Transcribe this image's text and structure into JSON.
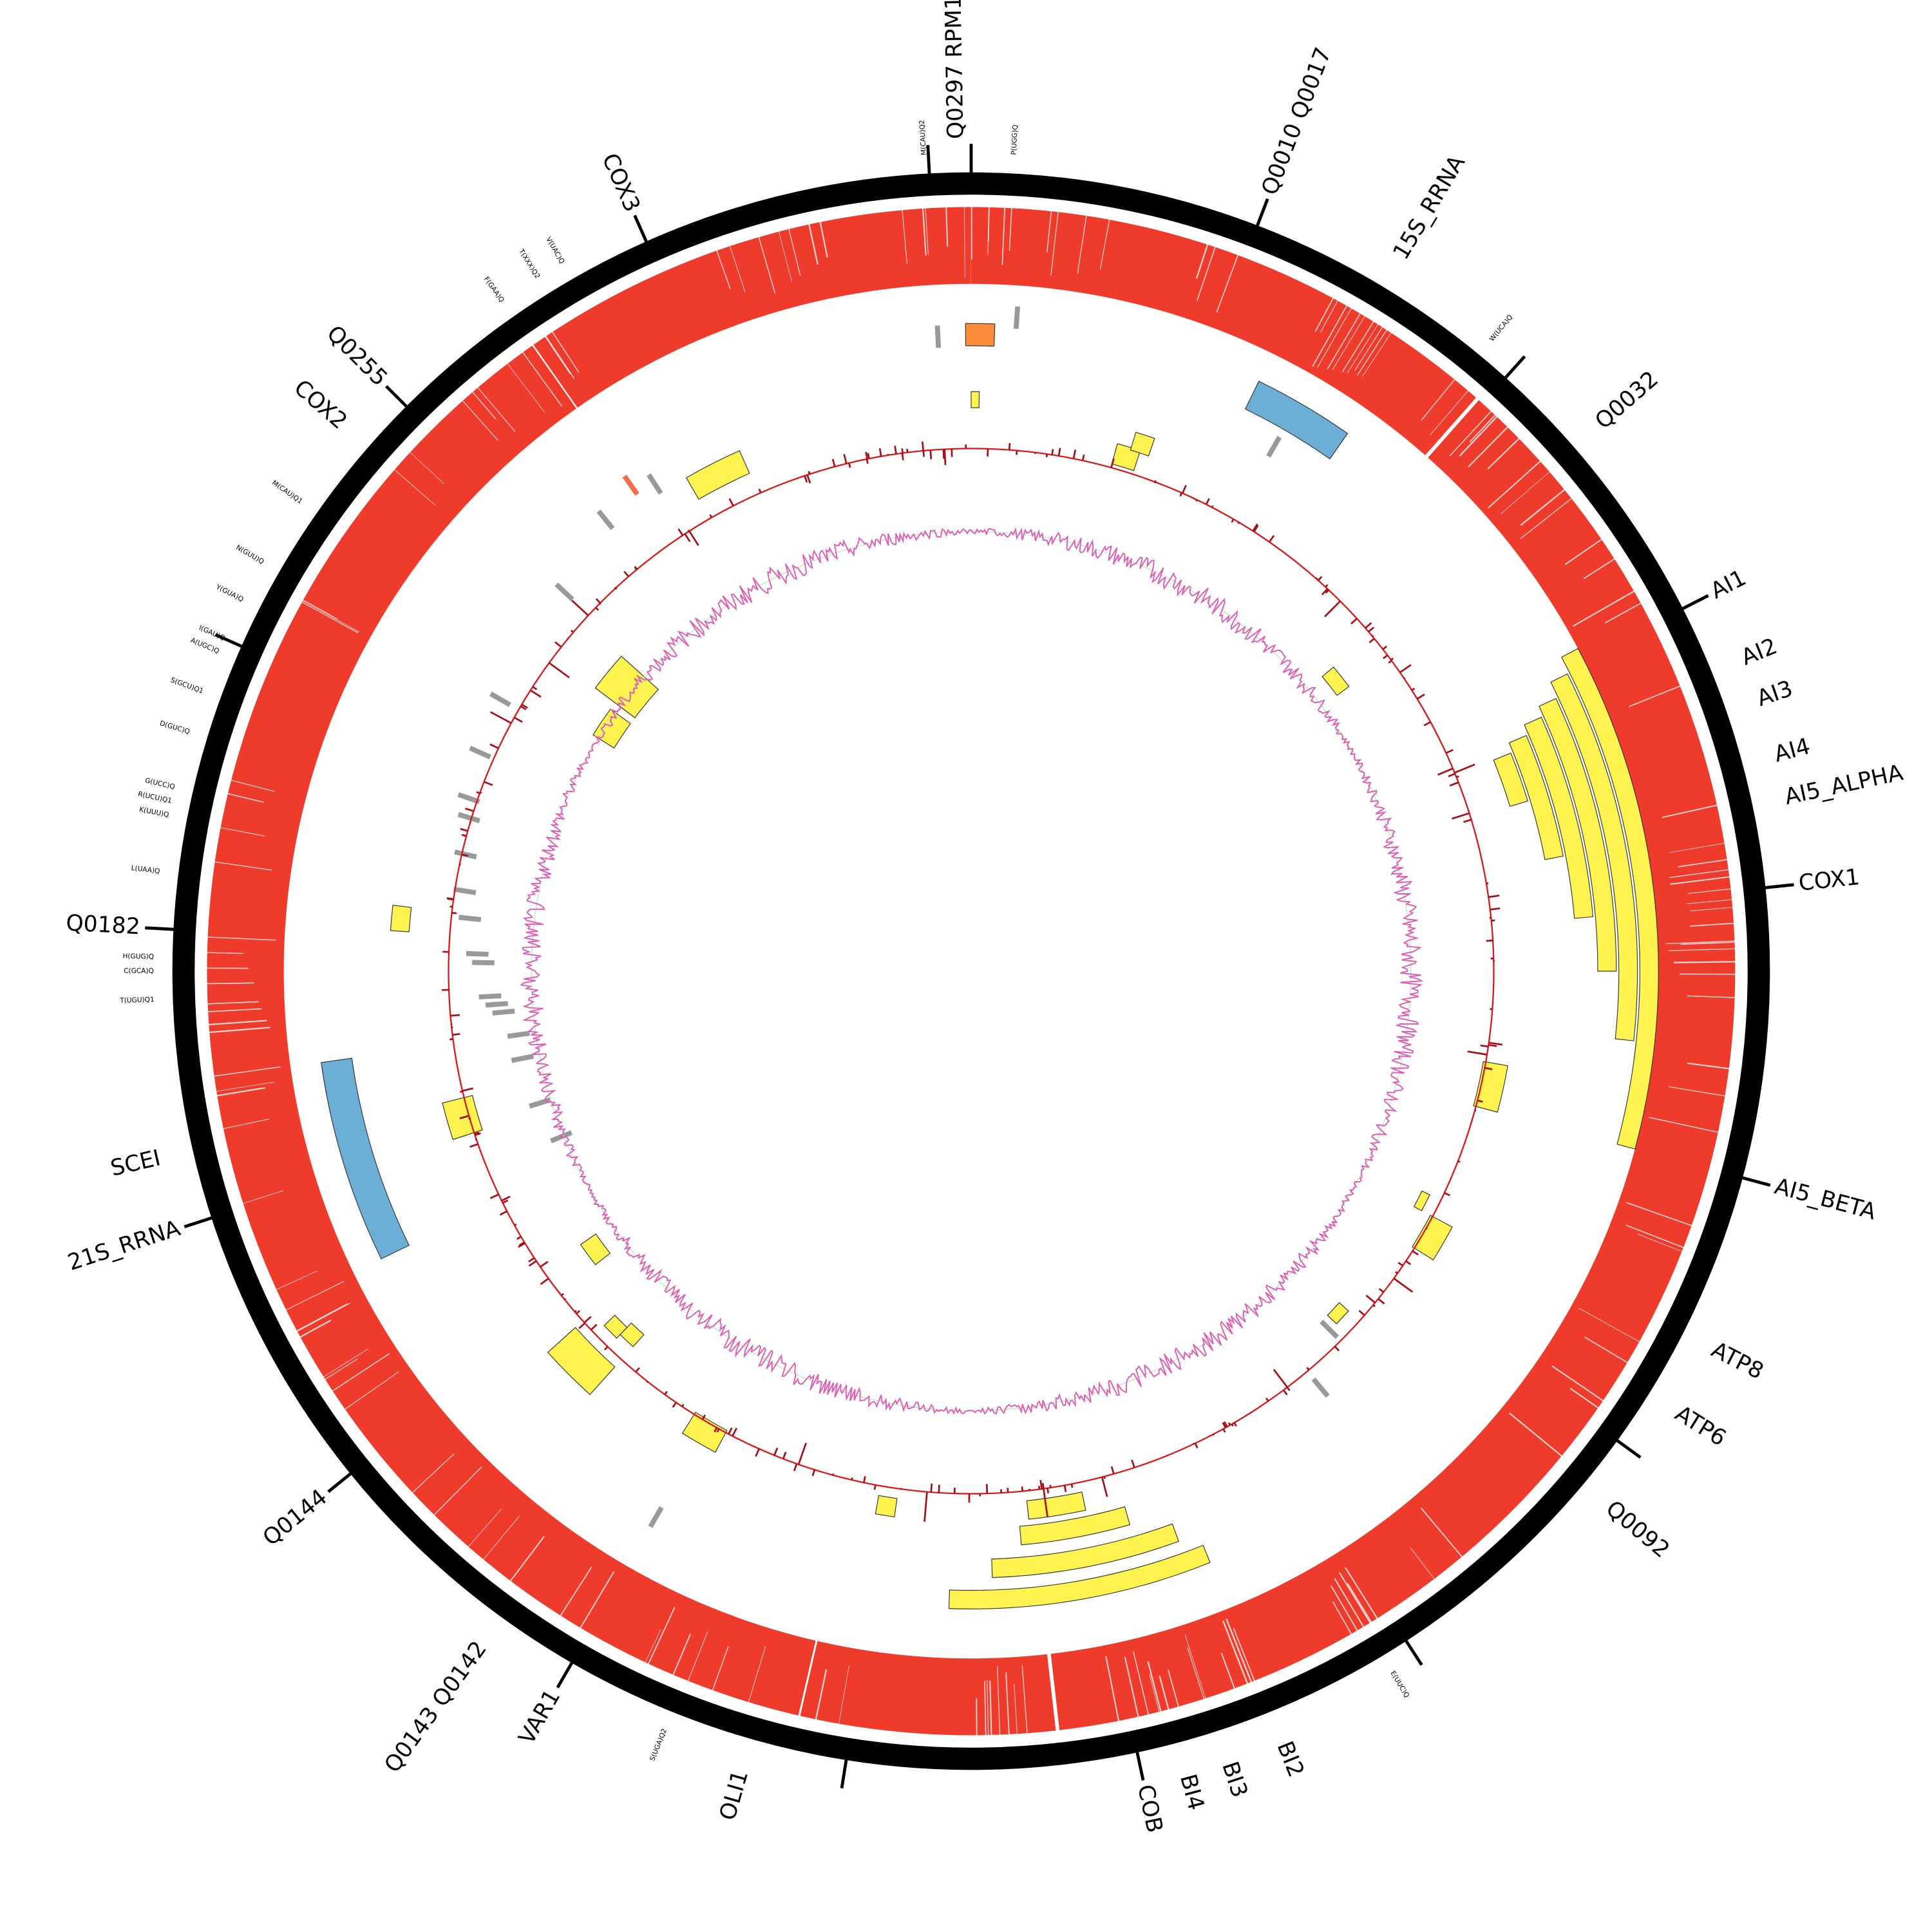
{
  "gene_labels": [
    "Q0297 RPM1",
    "Q0010 Q0017",
    "15S_RRNA",
    "Q0032",
    "AI1",
    "AI2",
    "AI3",
    "AI4",
    "AI5_ALPHA",
    "COX1",
    "AI5_BETA",
    "ATP8",
    "ATP6",
    "Q0092",
    "BI2",
    "BI3",
    "BI4",
    "COB",
    "OLI1",
    "VAR1",
    "Q0143 Q0142",
    "Q0144",
    "21S_RRNA",
    "SCEI",
    "Q0182",
    "COX2",
    "Q0255",
    "COX3"
  ],
  "trna_labels": [
    "M(CAU)Q2",
    "P(UGG)Q",
    "W(UCA)Q",
    "E(UUC)Q",
    "S(UGA)Q2",
    "V(UAC)Q",
    "T(XXX)Q2",
    "F(GAA)Q",
    "M(CAU)Q1",
    "N(GUU)Q",
    "Y(GUA)Q",
    "I(GAU)Q",
    "A(UGC)Q",
    "S(GCU)Q1",
    "D(GUC)Q",
    "G(UCC)Q",
    "R(UCU)Q1",
    "K(UUU)Q",
    "L(UAA)Q",
    "H(GUG)Q",
    "C(GCA)Q",
    "T(UGU)Q1"
  ]
}
